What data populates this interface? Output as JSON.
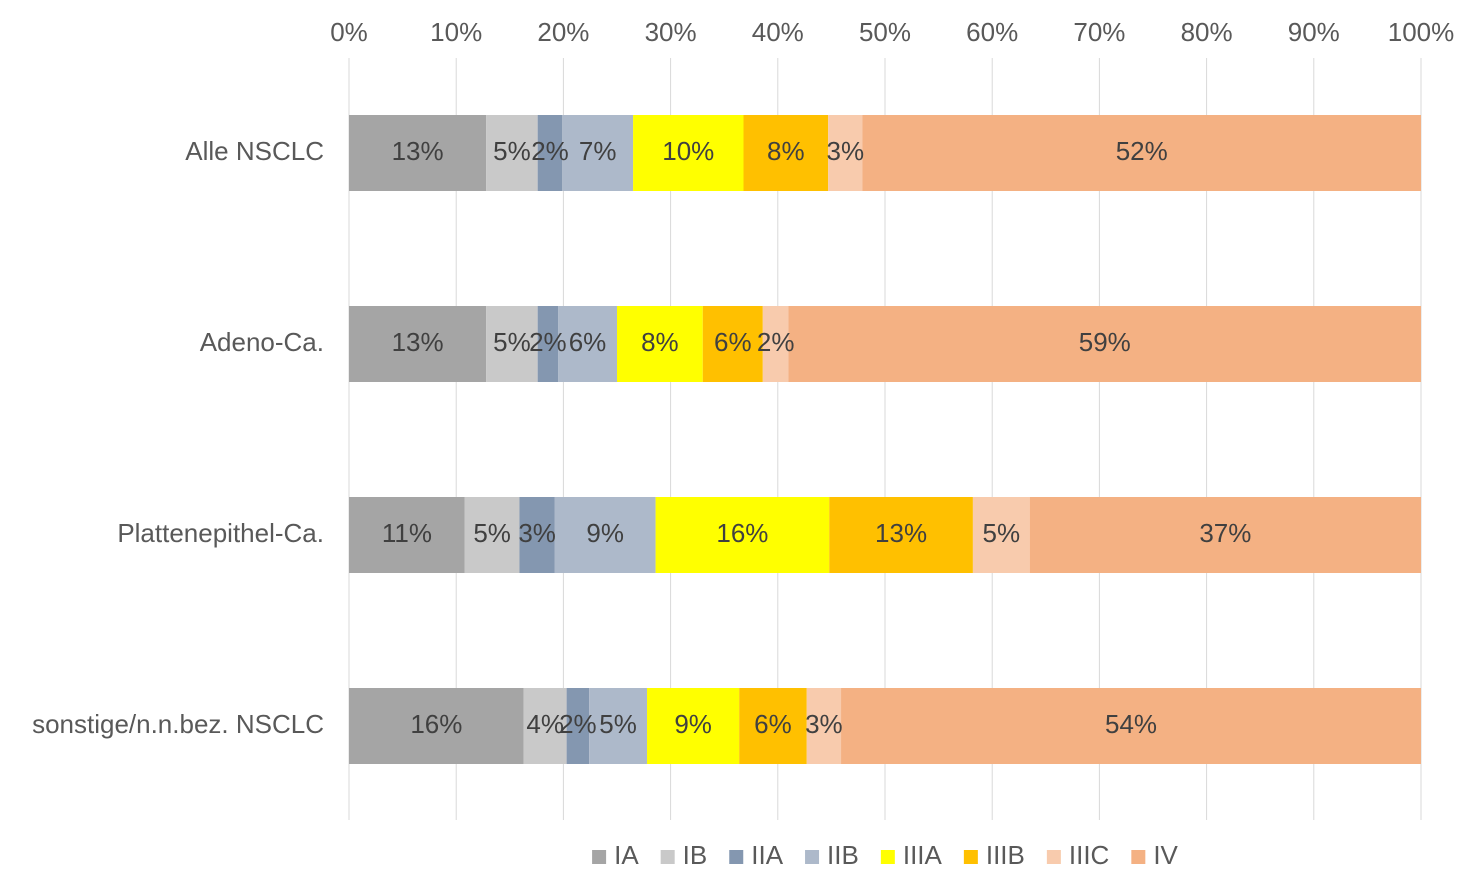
{
  "chart_data": {
    "type": "bar",
    "orientation": "horizontal",
    "stacked": "percent",
    "title": "",
    "xlabel": "",
    "ylabel": "",
    "xlim": [
      0,
      100
    ],
    "x_ticks": [
      "0%",
      "10%",
      "20%",
      "30%",
      "40%",
      "50%",
      "60%",
      "70%",
      "80%",
      "90%",
      "100%"
    ],
    "x_axis_position": "top",
    "grid": "vertical",
    "legend_position": "bottom",
    "categories": [
      "Alle NSCLC",
      "Adeno-Ca.",
      "Plattenepithel-Ca.",
      "sonstige/n.n.bez. NSCLC"
    ],
    "series": [
      {
        "name": "IA",
        "color": "#A5A5A5",
        "values": [
          12.8,
          12.8,
          10.8,
          16.3
        ],
        "labels": [
          "13%",
          "13%",
          "11%",
          "16%"
        ]
      },
      {
        "name": "IB",
        "color": "#C9C9C9",
        "values": [
          4.8,
          4.8,
          5.1,
          4.0
        ],
        "labels": [
          "5%",
          "5%",
          "5%",
          "4%"
        ]
      },
      {
        "name": "IIA",
        "color": "#8497B0",
        "values": [
          2.3,
          1.9,
          3.3,
          2.1
        ],
        "labels": [
          "2%",
          "2%",
          "3%",
          "2%"
        ]
      },
      {
        "name": "IIB",
        "color": "#ADB9CA",
        "values": [
          6.6,
          5.5,
          9.4,
          5.4
        ],
        "labels": [
          "7%",
          "6%",
          "9%",
          "5%"
        ]
      },
      {
        "name": "IIIA",
        "color": "#FFFF00",
        "values": [
          10.3,
          8.0,
          16.2,
          8.6
        ],
        "labels": [
          "10%",
          "8%",
          "16%",
          "9%"
        ]
      },
      {
        "name": "IIIB",
        "color": "#FFC000",
        "values": [
          7.9,
          5.6,
          13.4,
          6.3
        ],
        "labels": [
          "8%",
          "6%",
          "13%",
          "6%"
        ]
      },
      {
        "name": "IIIC",
        "color": "#F8CBAD",
        "values": [
          3.2,
          2.4,
          5.3,
          3.2
        ],
        "labels": [
          "3%",
          "2%",
          "5%",
          "3%"
        ]
      },
      {
        "name": "IV",
        "color": "#F4B183",
        "values": [
          52.1,
          59.0,
          36.5,
          54.1
        ],
        "labels": [
          "52%",
          "59%",
          "37%",
          "54%"
        ]
      }
    ]
  }
}
